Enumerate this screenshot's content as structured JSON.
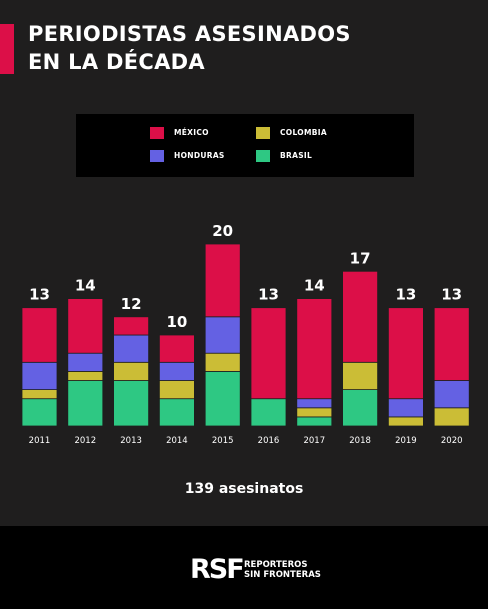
{
  "header": {
    "title_line1": "PERIODISTAS ASESINADOS",
    "title_line2": "EN LA DÉCADA",
    "accent_color": "#dc0f48"
  },
  "chart_data": {
    "type": "bar",
    "stacked": true,
    "categories": [
      "2011",
      "2012",
      "2013",
      "2014",
      "2015",
      "2016",
      "2017",
      "2018",
      "2019",
      "2020"
    ],
    "totals": [
      13,
      14,
      12,
      10,
      20,
      13,
      14,
      17,
      13,
      13
    ],
    "series": [
      {
        "name": "BRASIL",
        "color": "#2ec883",
        "values": [
          3,
          5,
          5,
          3,
          6,
          3,
          1,
          4,
          0,
          0
        ]
      },
      {
        "name": "COLOMBIA",
        "color": "#cbbd36",
        "values": [
          1,
          1,
          2,
          2,
          2,
          0,
          1,
          3,
          1,
          2
        ]
      },
      {
        "name": "HONDURAS",
        "color": "#6461e3",
        "values": [
          3,
          2,
          3,
          2,
          4,
          0,
          1,
          0,
          2,
          3
        ]
      },
      {
        "name": "MÉXICO",
        "color": "#dc0f48",
        "values": [
          6,
          6,
          2,
          3,
          8,
          10,
          11,
          10,
          10,
          8
        ]
      }
    ],
    "ylim": [
      0,
      20
    ]
  },
  "legend": {
    "items": [
      {
        "label": "MÉXICO",
        "color": "#dc0f48"
      },
      {
        "label": "COLOMBIA",
        "color": "#cbbd36"
      },
      {
        "label": "HONDURAS",
        "color": "#6461e3"
      },
      {
        "label": "BRASIL",
        "color": "#2ec883"
      }
    ]
  },
  "summary": {
    "total_text": "139 asesinatos"
  },
  "footer": {
    "logo_mark": "RSF",
    "logo_line1": "REPORTEROS",
    "logo_line2": "SIN FRONTERAS"
  }
}
